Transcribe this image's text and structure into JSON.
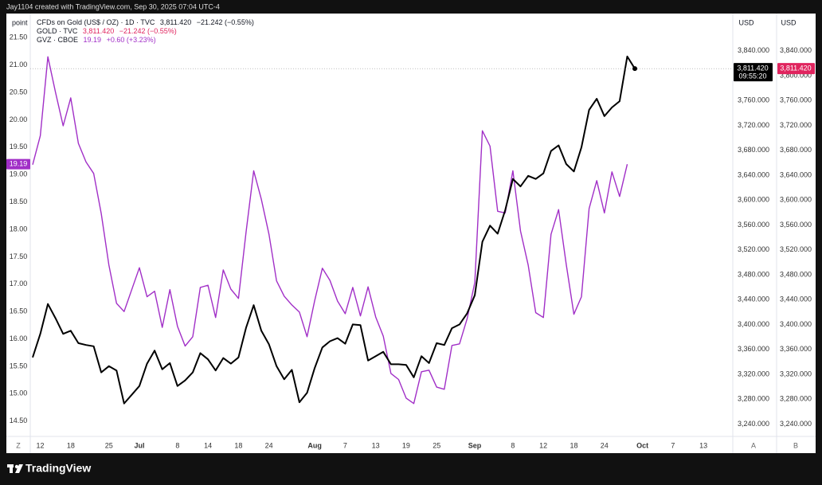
{
  "header": {
    "credit": "Jay1104 created with TradingView.com, Sep 30, 2025 07:04 UTC-4"
  },
  "chart_data": {
    "type": "line",
    "title": "CFDs on Gold (US$ / OZ) · 1D · TVC",
    "title_price": "3,811.420",
    "title_change": "−21.242 (−0.55%)",
    "y_unit": "point",
    "y2_unit": "USD",
    "grid": false,
    "categories": [
      null,
      "12",
      null,
      null,
      null,
      "18",
      null,
      null,
      null,
      null,
      "25",
      null,
      null,
      null,
      "Jul",
      null,
      null,
      null,
      null,
      "8",
      null,
      null,
      null,
      "14",
      null,
      null,
      null,
      "18",
      null,
      null,
      null,
      "24",
      null,
      null,
      null,
      null,
      null,
      "Aug",
      null,
      null,
      null,
      "7",
      null,
      null,
      null,
      "13",
      null,
      null,
      null,
      "19",
      null,
      null,
      null,
      "25",
      null,
      null,
      null,
      null,
      "Sep",
      null,
      null,
      null,
      null,
      "8",
      null,
      null,
      null,
      "12",
      null,
      null,
      null,
      "18",
      null,
      null,
      null,
      "24",
      null,
      null,
      null,
      null,
      "Oct",
      null,
      null,
      null,
      "7",
      null,
      null,
      null,
      "13"
    ],
    "series": [
      {
        "name": "GOLD · TVC",
        "axis": "y2",
        "color": "#000000",
        "legend_color": "#e0245e",
        "legend_price": "3,811.420",
        "legend_change": "−21.242 (−0.55%)",
        "tag_color": "#e0245e",
        "tag_label": "3,811.420",
        "clock_label": "3,811.420",
        "clock_time": "09:55:20",
        "values": [
          3347,
          3385,
          3433,
          3410,
          3385,
          3390,
          3370,
          3367,
          3365,
          3323,
          3333,
          3326,
          3273,
          3287,
          3301,
          3337,
          3358,
          3328,
          3338,
          3301,
          3310,
          3323,
          3354,
          3344,
          3326,
          3346,
          3337,
          3347,
          3395,
          3431,
          3390,
          3368,
          3333,
          3312,
          3327,
          3275,
          3290,
          3330,
          3363,
          3373,
          3378,
          3369,
          3400,
          3399,
          3342,
          3349,
          3356,
          3336,
          3336,
          3335,
          3315,
          3349,
          3338,
          3370,
          3367,
          3394,
          3400,
          3418,
          3447,
          3533,
          3559,
          3546,
          3584,
          3634,
          3622,
          3639,
          3634,
          3643,
          3679,
          3688,
          3658,
          3646,
          3685,
          3745,
          3763,
          3735,
          3749,
          3759,
          3831,
          3811.42,
          null,
          null,
          null,
          null,
          null,
          null,
          null,
          null,
          null
        ]
      },
      {
        "name": "GVZ · CBOE",
        "axis": "y",
        "color": "#a12fc7",
        "legend_color": "#a12fc7",
        "legend_price": "19.19",
        "legend_change": "+0.60 (+3.23%)",
        "tag_color": "#a12fc7",
        "tag_label": "19.19",
        "values": [
          19.18,
          19.71,
          21.15,
          20.5,
          19.89,
          20.4,
          19.57,
          19.23,
          19.02,
          18.29,
          17.35,
          16.65,
          16.5,
          16.9,
          17.3,
          16.77,
          16.87,
          16.21,
          16.9,
          16.23,
          15.87,
          16.04,
          16.94,
          16.98,
          16.39,
          17.26,
          16.91,
          16.74,
          17.96,
          19.07,
          18.55,
          17.91,
          17.06,
          16.78,
          16.62,
          16.49,
          16.04,
          16.7,
          17.29,
          17.07,
          16.69,
          16.46,
          16.94,
          16.42,
          16.95,
          16.4,
          16.05,
          15.37,
          15.26,
          14.92,
          14.82,
          15.4,
          15.43,
          15.12,
          15.08,
          15.88,
          15.91,
          16.37,
          17.03,
          19.8,
          19.52,
          18.33,
          18.3,
          19.07,
          17.97,
          17.35,
          16.48,
          16.39,
          17.91,
          18.36,
          17.36,
          16.45,
          16.77,
          18.38,
          18.89,
          18.3,
          19.05,
          18.6,
          19.19,
          null,
          null,
          null,
          null,
          null,
          null,
          null,
          null,
          null,
          null
        ]
      }
    ],
    "ylim": [
      14.22,
      21.94
    ],
    "yticks": [
      {
        "value": 14.5,
        "label": "14.50"
      },
      {
        "value": 15,
        "label": "15.00"
      },
      {
        "value": 15.5,
        "label": "15.50"
      },
      {
        "value": 16,
        "label": "16.00"
      },
      {
        "value": 16.5,
        "label": "16.50"
      },
      {
        "value": 17,
        "label": "17.00"
      },
      {
        "value": 17.5,
        "label": "17.50"
      },
      {
        "value": 18,
        "label": "18.00"
      },
      {
        "value": 18.5,
        "label": "18.50"
      },
      {
        "value": 19,
        "label": "19.00"
      },
      {
        "value": 19.5,
        "label": "19.50"
      },
      {
        "value": 20,
        "label": "20.00"
      },
      {
        "value": 20.5,
        "label": "20.50"
      },
      {
        "value": 21,
        "label": "21.00"
      },
      {
        "value": 21.5,
        "label": "21.50"
      }
    ],
    "y2lim": [
      3220,
      3900
    ],
    "y2ticks": [
      {
        "value": 3240,
        "label": "3,240.000"
      },
      {
        "value": 3280,
        "label": "3,280.000"
      },
      {
        "value": 3320,
        "label": "3,320.000"
      },
      {
        "value": 3360,
        "label": "3,360.000"
      },
      {
        "value": 3400,
        "label": "3,400.000"
      },
      {
        "value": 3440,
        "label": "3,440.000"
      },
      {
        "value": 3480,
        "label": "3,480.000"
      },
      {
        "value": 3520,
        "label": "3,520.000"
      },
      {
        "value": 3560,
        "label": "3,560.000"
      },
      {
        "value": 3600,
        "label": "3,600.000"
      },
      {
        "value": 3640,
        "label": "3,640.000"
      },
      {
        "value": 3680,
        "label": "3,680.000"
      },
      {
        "value": 3720,
        "label": "3,720.000"
      },
      {
        "value": 3760,
        "label": "3,760.000"
      },
      {
        "value": 3800,
        "label": "3,800.000"
      },
      {
        "value": 3840,
        "label": "3,840.000"
      }
    ]
  },
  "controls": [
    "Z",
    "A",
    "B"
  ],
  "footer": {
    "brand": "TradingView"
  }
}
